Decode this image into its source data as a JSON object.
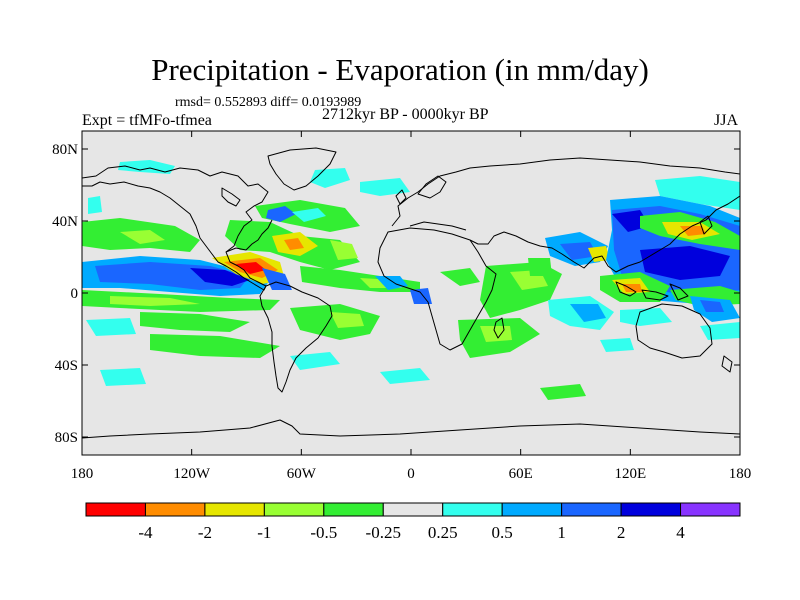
{
  "title": "Precipitation - Evaporation (in mm/day)",
  "stats": "rmsd= 0.552893 diff= 0.0193989",
  "experiment": "Expt = tfMFo-tfmea",
  "period": "2712kyr BP - 0000kyr BP",
  "season": "JJA",
  "lat_ticks": [
    {
      "label": "80N",
      "value": 80
    },
    {
      "label": "40N",
      "value": 40
    },
    {
      "label": "0",
      "value": 0
    },
    {
      "label": "40S",
      "value": -40
    },
    {
      "label": "80S",
      "value": -80
    }
  ],
  "lon_ticks": [
    {
      "label": "180",
      "value": -180
    },
    {
      "label": "120W",
      "value": -120
    },
    {
      "label": "60W",
      "value": -60
    },
    {
      "label": "0",
      "value": 0
    },
    {
      "label": "60E",
      "value": 60
    },
    {
      "label": "120E",
      "value": 120
    },
    {
      "label": "180",
      "value": 180
    }
  ],
  "colorbar": {
    "colors": [
      "#ff0000",
      "#ff8c00",
      "#e6e600",
      "#99ff33",
      "#33ee33",
      "#e6e6e6",
      "#33ffee",
      "#00aaff",
      "#1a66ff",
      "#0000dd",
      "#8833ff"
    ],
    "labels": [
      "-4",
      "-2",
      "-1",
      "-0.5",
      "-0.25",
      "0.25",
      "0.5",
      "1",
      "2",
      "4"
    ]
  },
  "colors": {
    "land_background": "#e6e6e6",
    "coastline": "#000000"
  }
}
